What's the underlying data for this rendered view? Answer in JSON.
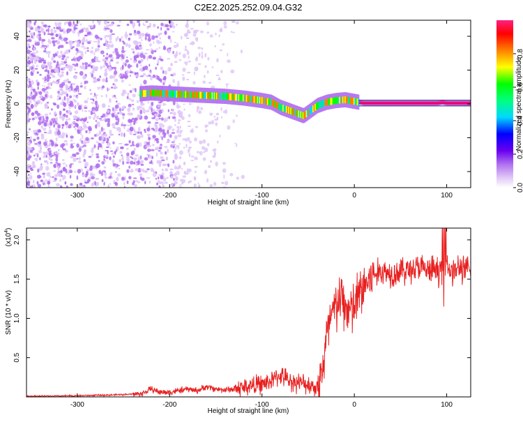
{
  "figure_title": "C2E2.2025.252.09.04.G32",
  "chart_data": [
    {
      "type": "heatmap",
      "title": "",
      "xlabel": "Height of straight line (km)",
      "ylabel": "Frequency (Hz)",
      "xlim": [
        -355,
        126
      ],
      "ylim": [
        -49.5,
        49.5
      ],
      "x_ticks": [
        -300,
        -200,
        -100,
        0,
        100
      ],
      "x_tick_labels": [
        "-300",
        "-200",
        "-100",
        "0",
        "100"
      ],
      "y_ticks": [
        40,
        20,
        0,
        -20,
        -40
      ],
      "y_tick_labels": [
        "40",
        "20",
        "0",
        "-20",
        "-40"
      ],
      "grid": false,
      "colorbar": {
        "label": "Normalized spectral amplitude",
        "range": [
          0,
          1
        ],
        "ticks": [
          0.0,
          0.2,
          0.4,
          0.6,
          0.8
        ],
        "tick_labels": [
          "0.0",
          "0.2",
          "0.4",
          "0.6",
          "0.8"
        ],
        "colormap": "rainbow (white, purple, blue, cyan, green, yellow, red, magenta)",
        "colors": [
          "#ffffff",
          "#e0c8f8",
          "#b070f0",
          "#6a00f0",
          "#0000ff",
          "#00d8ff",
          "#00ff00",
          "#ffff00",
          "#ff8000",
          "#ff0000",
          "#ff2080"
        ]
      },
      "signal_trace": {
        "x": [
          -232,
          -220,
          -200,
          -180,
          -160,
          -140,
          -120,
          -100,
          -90,
          -80,
          -70,
          -60,
          -55,
          -50,
          -45,
          -40,
          -35,
          -30,
          -20,
          -10,
          0,
          10,
          40,
          70,
          90,
          95,
          100,
          126
        ],
        "y": [
          6,
          6.5,
          6,
          5.5,
          5,
          4.5,
          3.5,
          2,
          1,
          -2,
          -4,
          -6,
          -7,
          -5,
          -3,
          -1,
          0,
          1,
          2,
          2.5,
          1.5,
          0.5,
          0.5,
          0.5,
          0.5,
          1,
          0.5,
          0.5
        ]
      },
      "noise_region_km": [
        -355,
        -140
      ],
      "noise_dense_until_km": -195
    },
    {
      "type": "line",
      "title": "",
      "xlabel": "Height of straight line (km)",
      "ylabel": "SNR (10 * v/v)",
      "y_multiplier_label": "(x10",
      "y_multiplier_exp": "4",
      "xlim": [
        -355,
        126
      ],
      "ylim": [
        0,
        2.15
      ],
      "x_ticks": [
        -300,
        -200,
        -100,
        0,
        100
      ],
      "x_tick_labels": [
        "-300",
        "-200",
        "-100",
        "0",
        "100"
      ],
      "y_ticks": [
        0.5,
        1.0,
        1.5,
        2.0
      ],
      "y_tick_labels": [
        "0.5",
        "1.0",
        "1.5",
        "2.0"
      ],
      "grid": false,
      "series": [
        {
          "color": "#e82020",
          "x": [
            -355,
            -330,
            -300,
            -260,
            -230,
            -220,
            -210,
            -200,
            -190,
            -180,
            -170,
            -160,
            -150,
            -140,
            -130,
            -120,
            -110,
            -100,
            -90,
            -80,
            -70,
            -60,
            -50,
            -40,
            -35,
            -30,
            -25,
            -20,
            -15,
            -10,
            -5,
            0,
            5,
            10,
            20,
            30,
            40,
            50,
            60,
            70,
            80,
            90,
            97,
            100,
            105,
            110,
            115,
            120,
            126
          ],
          "y": [
            0.01,
            0.01,
            0.015,
            0.025,
            0.04,
            0.1,
            0.06,
            0.06,
            0.08,
            0.1,
            0.08,
            0.13,
            0.1,
            0.09,
            0.1,
            0.12,
            0.15,
            0.16,
            0.2,
            0.28,
            0.2,
            0.18,
            0.16,
            0.12,
            0.3,
            0.75,
            1.0,
            1.15,
            1.25,
            1.15,
            1.1,
            1.12,
            1.3,
            1.4,
            1.55,
            1.6,
            1.58,
            1.6,
            1.62,
            1.65,
            1.6,
            1.62,
            1.6,
            1.72,
            1.58,
            1.62,
            1.65,
            1.6,
            1.62
          ]
        }
      ]
    }
  ]
}
